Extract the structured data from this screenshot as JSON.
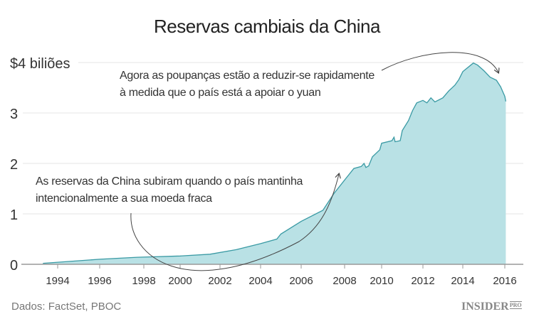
{
  "title": "Reservas cambiais da China",
  "source": "Dados: FactSet, PBOC",
  "logo": {
    "text": "INSIDER",
    "sup": "PRO"
  },
  "annotations": [
    {
      "lines": [
        "Agora as poupanças estão a reduzir-se rapidamente",
        "à medida que o país está a apoiar o yuan"
      ]
    },
    {
      "lines": [
        "As reservas da China subiram quando o país mantinha",
        "intencionalmente a sua moeda fraca"
      ]
    }
  ],
  "colors": {
    "fill": "#b9e1e5",
    "line": "#3a9aa4",
    "grid": "#e4e4e4",
    "axis": "#999999"
  },
  "chart_data": {
    "type": "area",
    "title": "Reservas cambiais da China",
    "ylabel_top": "$4 biliões",
    "ylim": [
      0,
      4
    ],
    "xlim": [
      1993,
      2016.5
    ],
    "yticks": [
      {
        "v": 0,
        "label": "0"
      },
      {
        "v": 1,
        "label": "1"
      },
      {
        "v": 2,
        "label": "2"
      },
      {
        "v": 3,
        "label": "3"
      },
      {
        "v": 4,
        "label": "$4 biliões"
      }
    ],
    "xticks": [
      "1994",
      "1996",
      "1998",
      "2000",
      "2002",
      "2004",
      "2006",
      "2008",
      "2010",
      "2012",
      "2014",
      "2016"
    ],
    "grid": true,
    "x": [
      1993.3,
      1996,
      1997.7,
      2000,
      2001.5,
      2002.8,
      2004,
      2004.8,
      2005,
      2006,
      2007,
      2007.5,
      2008,
      2008.5,
      2008.9,
      2009.05,
      2009.15,
      2009.3,
      2009.5,
      2009.9,
      2010.0,
      2010.5,
      2010.6,
      2010.65,
      2010.9,
      2011,
      2011.3,
      2011.5,
      2011.7,
      2012,
      2012.2,
      2012.4,
      2012.6,
      2013,
      2013.3,
      2013.6,
      2013.8,
      2014.0,
      2014.5,
      2014.7,
      2015.0,
      2015.3,
      2015.6,
      2015.8,
      2016.0,
      2016.05
    ],
    "values": [
      0.02,
      0.1,
      0.14,
      0.165,
      0.2,
      0.29,
      0.41,
      0.5,
      0.6,
      0.85,
      1.07,
      1.4,
      1.67,
      1.9,
      1.94,
      2.0,
      1.92,
      1.95,
      2.13,
      2.27,
      2.4,
      2.45,
      2.52,
      2.43,
      2.45,
      2.65,
      2.85,
      3.05,
      3.2,
      3.25,
      3.2,
      3.3,
      3.22,
      3.3,
      3.44,
      3.55,
      3.66,
      3.82,
      3.99,
      3.95,
      3.84,
      3.71,
      3.65,
      3.52,
      3.33,
      3.23
    ]
  }
}
